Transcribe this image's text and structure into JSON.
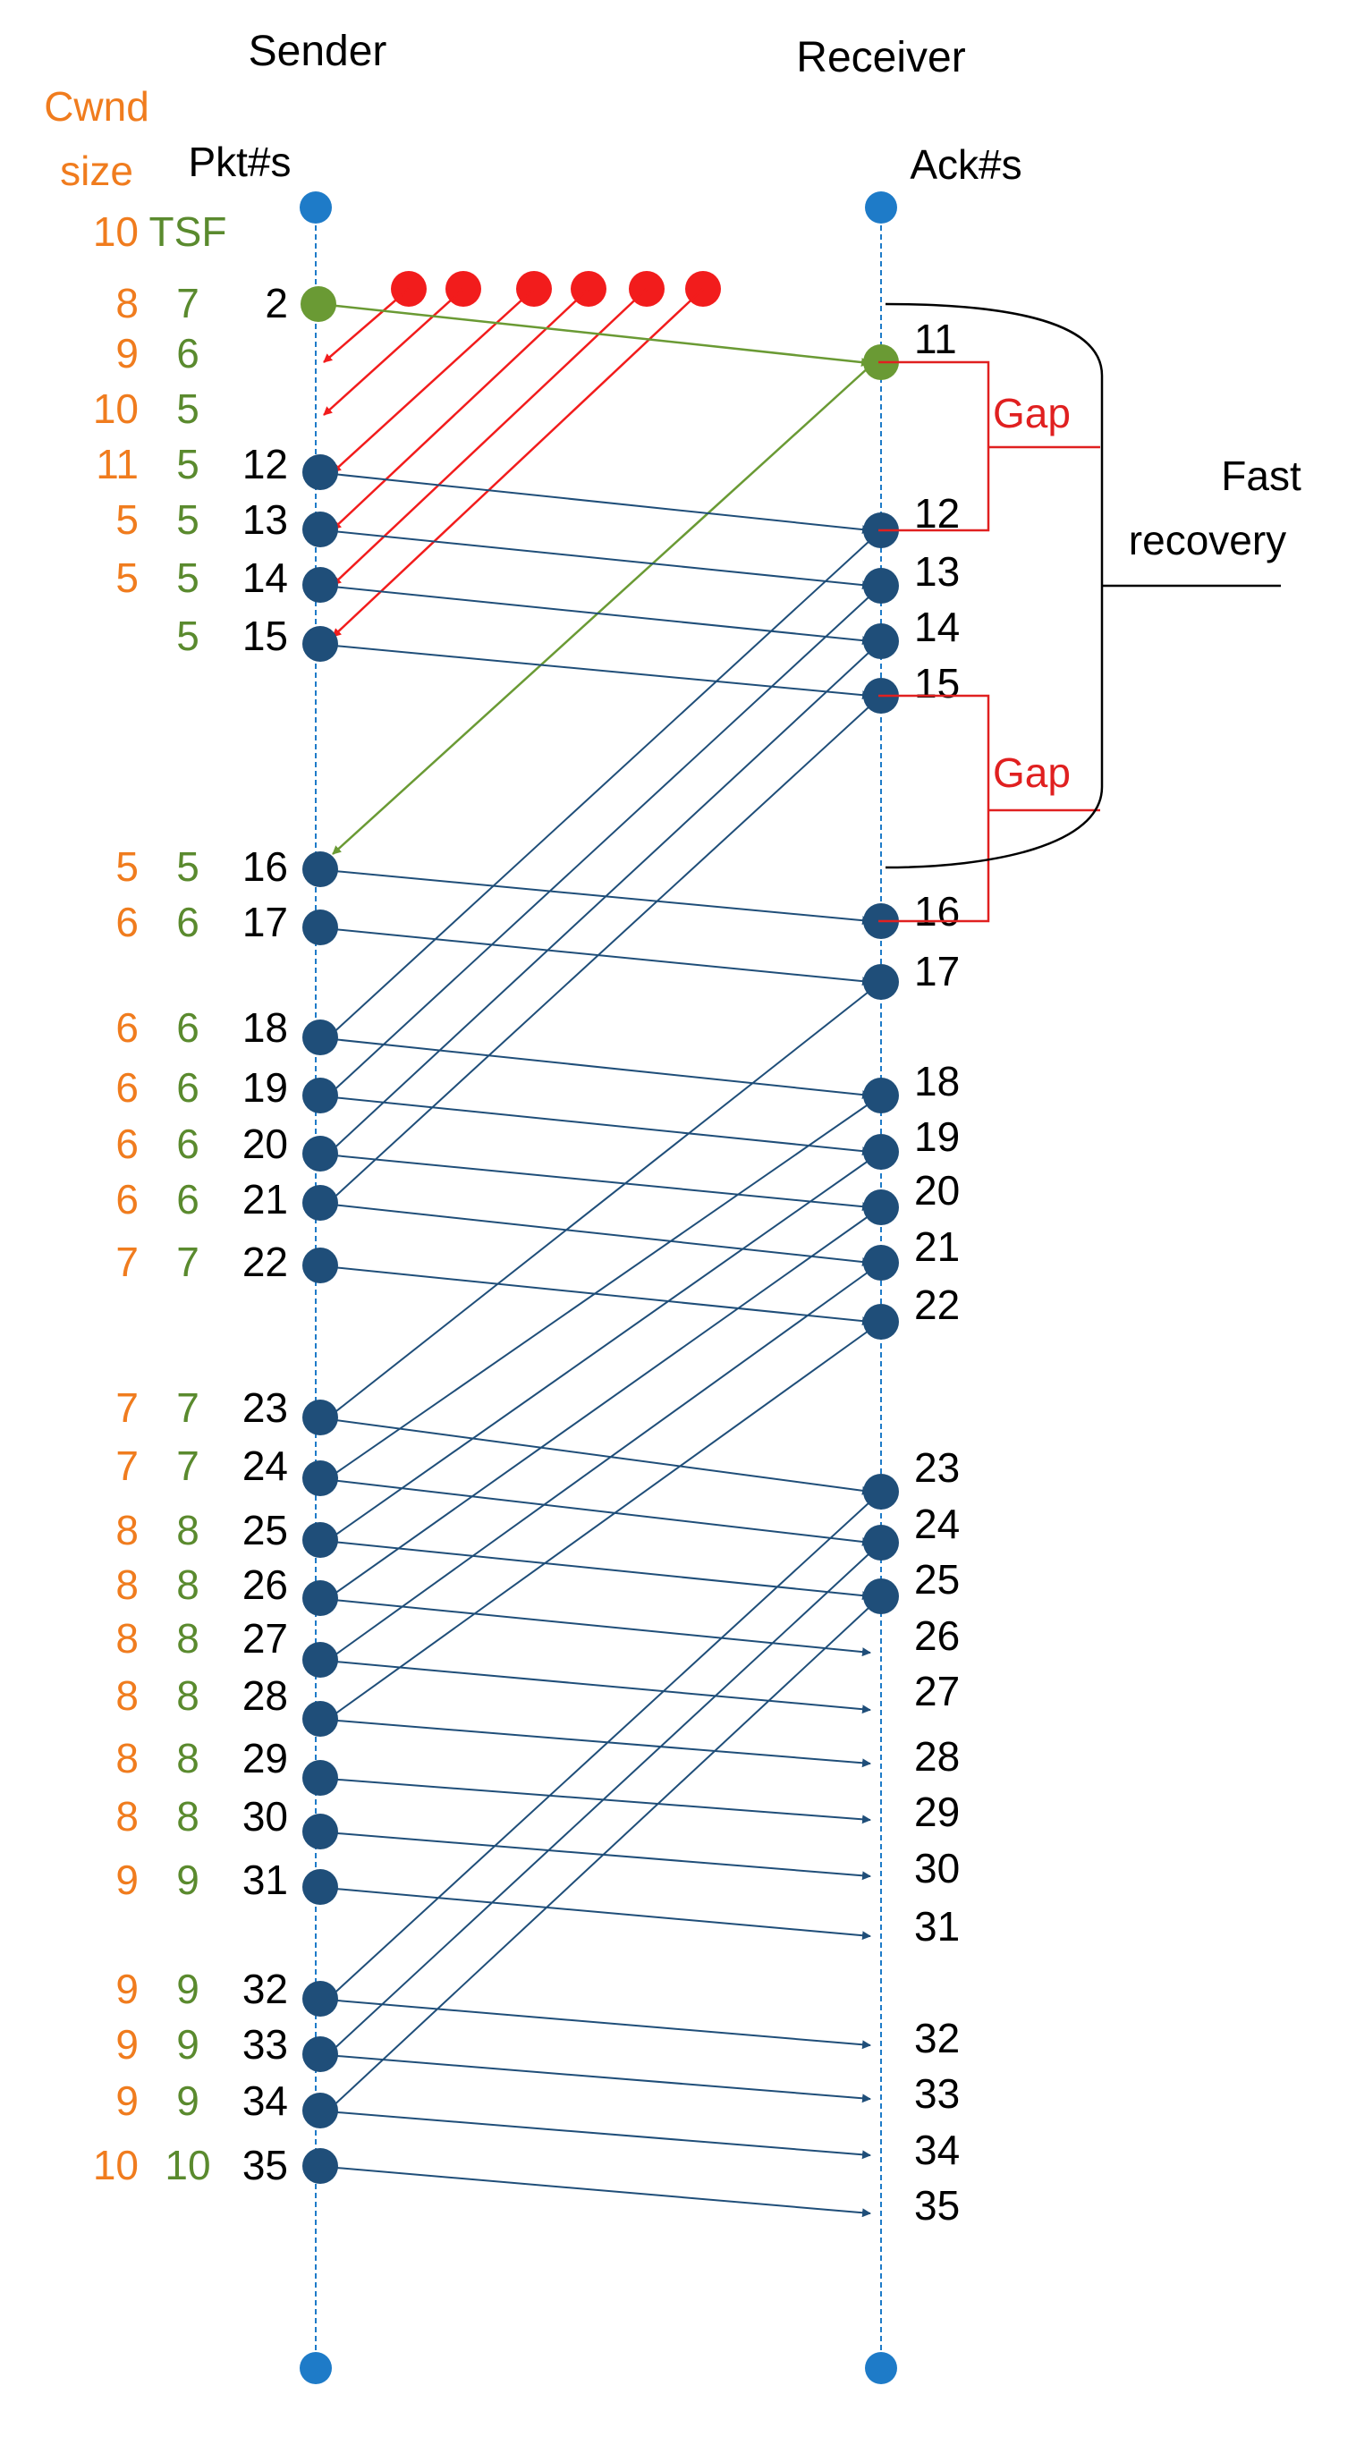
{
  "headers": {
    "sender": "Sender",
    "receiver": "Receiver",
    "cwnd_line1": "Cwnd",
    "cwnd_line2": "size",
    "pkts": "Pkt#s",
    "acks": "Ack#s",
    "tsf_value": "10",
    "tsf_label": "TSF"
  },
  "annotations": {
    "gap1": "Gap",
    "gap2": "Gap",
    "fast_recovery_line1": "Fast",
    "fast_recovery_line2": "recovery"
  },
  "colors": {
    "cwnd": "#F07C1E",
    "tsf": "#5A8A2E",
    "packet": "#1F4E79",
    "lost": "#F21C1C",
    "retransmit": "#6A9A34",
    "gap": "#E02020",
    "timeline": "#1E7BC8"
  },
  "lost_packets": 6,
  "rows": [
    {
      "cwnd": "8",
      "tsf": "7",
      "pkt": "2"
    },
    {
      "cwnd": "9",
      "tsf": "6",
      "pkt": ""
    },
    {
      "cwnd": "10",
      "tsf": "5",
      "pkt": ""
    },
    {
      "cwnd": "11",
      "tsf": "5",
      "pkt": "12"
    },
    {
      "cwnd": "5",
      "tsf": "5",
      "pkt": "13"
    },
    {
      "cwnd": "5",
      "tsf": "5",
      "pkt": "14"
    },
    {
      "cwnd": "",
      "tsf": "5",
      "pkt": "15"
    },
    {
      "cwnd": "5",
      "tsf": "5",
      "pkt": "16"
    },
    {
      "cwnd": "6",
      "tsf": "6",
      "pkt": "17"
    },
    {
      "cwnd": "6",
      "tsf": "6",
      "pkt": "18"
    },
    {
      "cwnd": "6",
      "tsf": "6",
      "pkt": "19"
    },
    {
      "cwnd": "6",
      "tsf": "6",
      "pkt": "20"
    },
    {
      "cwnd": "6",
      "tsf": "6",
      "pkt": "21"
    },
    {
      "cwnd": "7",
      "tsf": "7",
      "pkt": "22"
    },
    {
      "cwnd": "7",
      "tsf": "7",
      "pkt": "23"
    },
    {
      "cwnd": "7",
      "tsf": "7",
      "pkt": "24"
    },
    {
      "cwnd": "8",
      "tsf": "8",
      "pkt": "25"
    },
    {
      "cwnd": "8",
      "tsf": "8",
      "pkt": "26"
    },
    {
      "cwnd": "8",
      "tsf": "8",
      "pkt": "27"
    },
    {
      "cwnd": "8",
      "tsf": "8",
      "pkt": "28"
    },
    {
      "cwnd": "8",
      "tsf": "8",
      "pkt": "29"
    },
    {
      "cwnd": "8",
      "tsf": "8",
      "pkt": "30"
    },
    {
      "cwnd": "9",
      "tsf": "9",
      "pkt": "31"
    },
    {
      "cwnd": "9",
      "tsf": "9",
      "pkt": "32"
    },
    {
      "cwnd": "9",
      "tsf": "9",
      "pkt": "33"
    },
    {
      "cwnd": "9",
      "tsf": "9",
      "pkt": "34"
    },
    {
      "cwnd": "10",
      "tsf": "10",
      "pkt": "35"
    }
  ],
  "acks": [
    "11",
    "12",
    "13",
    "14",
    "15",
    "16",
    "17",
    "18",
    "19",
    "20",
    "21",
    "22",
    "23",
    "24",
    "25",
    "26",
    "27",
    "28",
    "29",
    "30",
    "31",
    "32",
    "33",
    "34",
    "35"
  ]
}
